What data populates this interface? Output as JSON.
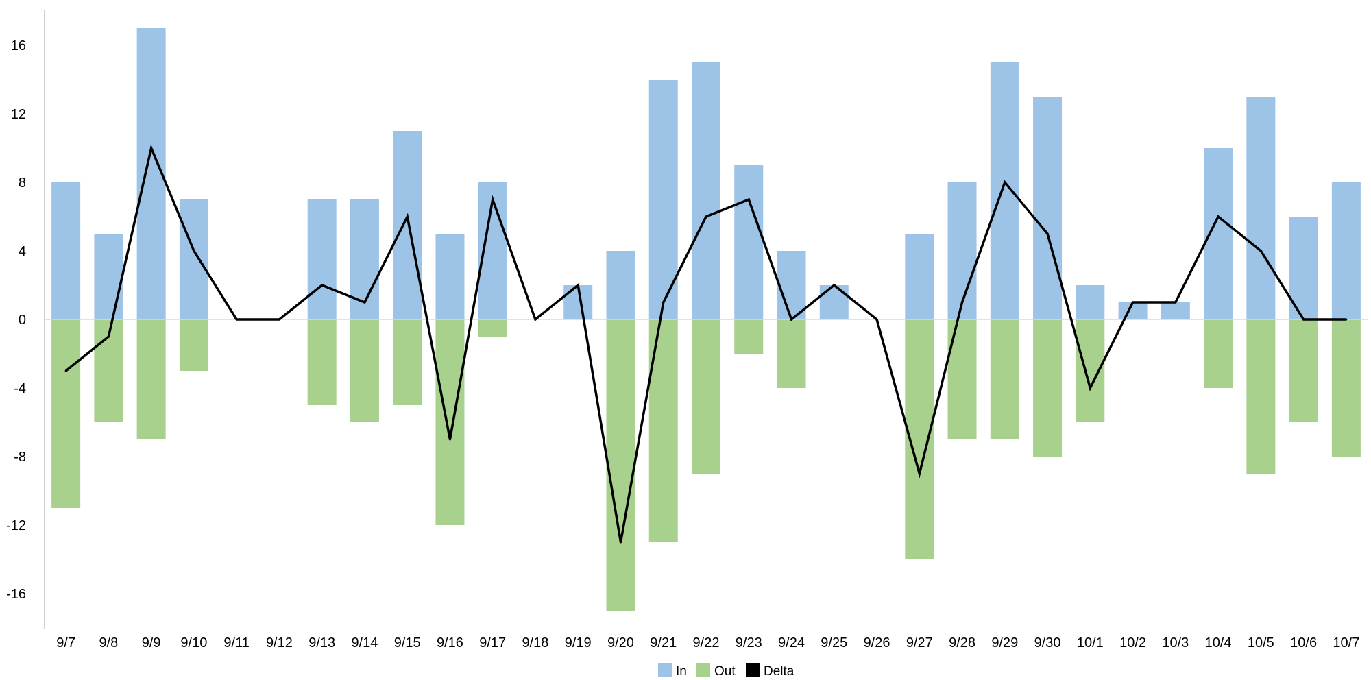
{
  "chart_data": {
    "type": "bar",
    "categories": [
      "9/7",
      "9/8",
      "9/9",
      "9/10",
      "9/11",
      "9/12",
      "9/13",
      "9/14",
      "9/15",
      "9/16",
      "9/17",
      "9/18",
      "9/19",
      "9/20",
      "9/21",
      "9/22",
      "9/23",
      "9/24",
      "9/25",
      "9/26",
      "9/27",
      "9/28",
      "9/29",
      "9/30",
      "10/1",
      "10/2",
      "10/3",
      "10/4",
      "10/5",
      "10/6",
      "10/7"
    ],
    "series": [
      {
        "name": "In",
        "kind": "bar",
        "color": "#9dc3e6",
        "values": [
          8,
          5,
          17,
          7,
          0,
          0,
          7,
          7,
          11,
          5,
          8,
          0,
          2,
          4,
          14,
          15,
          9,
          4,
          2,
          0,
          5,
          8,
          15,
          13,
          2,
          1,
          1,
          10,
          13,
          6,
          8
        ]
      },
      {
        "name": "Out",
        "kind": "bar",
        "color": "#a9d18e",
        "values": [
          -11,
          -6,
          -7,
          -3,
          0,
          0,
          -5,
          -6,
          -5,
          -12,
          -1,
          0,
          0,
          -17,
          -13,
          -9,
          -2,
          -4,
          0,
          0,
          -14,
          -7,
          -7,
          -8,
          -6,
          0,
          0,
          -4,
          -9,
          -6,
          -8
        ]
      },
      {
        "name": "Delta",
        "kind": "line",
        "color": "#000000",
        "values": [
          -3,
          -1,
          10,
          4,
          0,
          0,
          2,
          1,
          6,
          -7,
          7,
          0,
          2,
          -13,
          1,
          6,
          7,
          0,
          2,
          0,
          -9,
          1,
          8,
          5,
          -4,
          1,
          1,
          6,
          4,
          0,
          0
        ]
      }
    ],
    "yticks": [
      "16",
      "12",
      "8",
      "4",
      "0",
      "-4",
      "-8",
      "-12",
      "-16"
    ],
    "ylim": [
      -18,
      18
    ],
    "grid": false,
    "legend_position": "bottom-center",
    "title": "",
    "xlabel": "",
    "ylabel": ""
  }
}
